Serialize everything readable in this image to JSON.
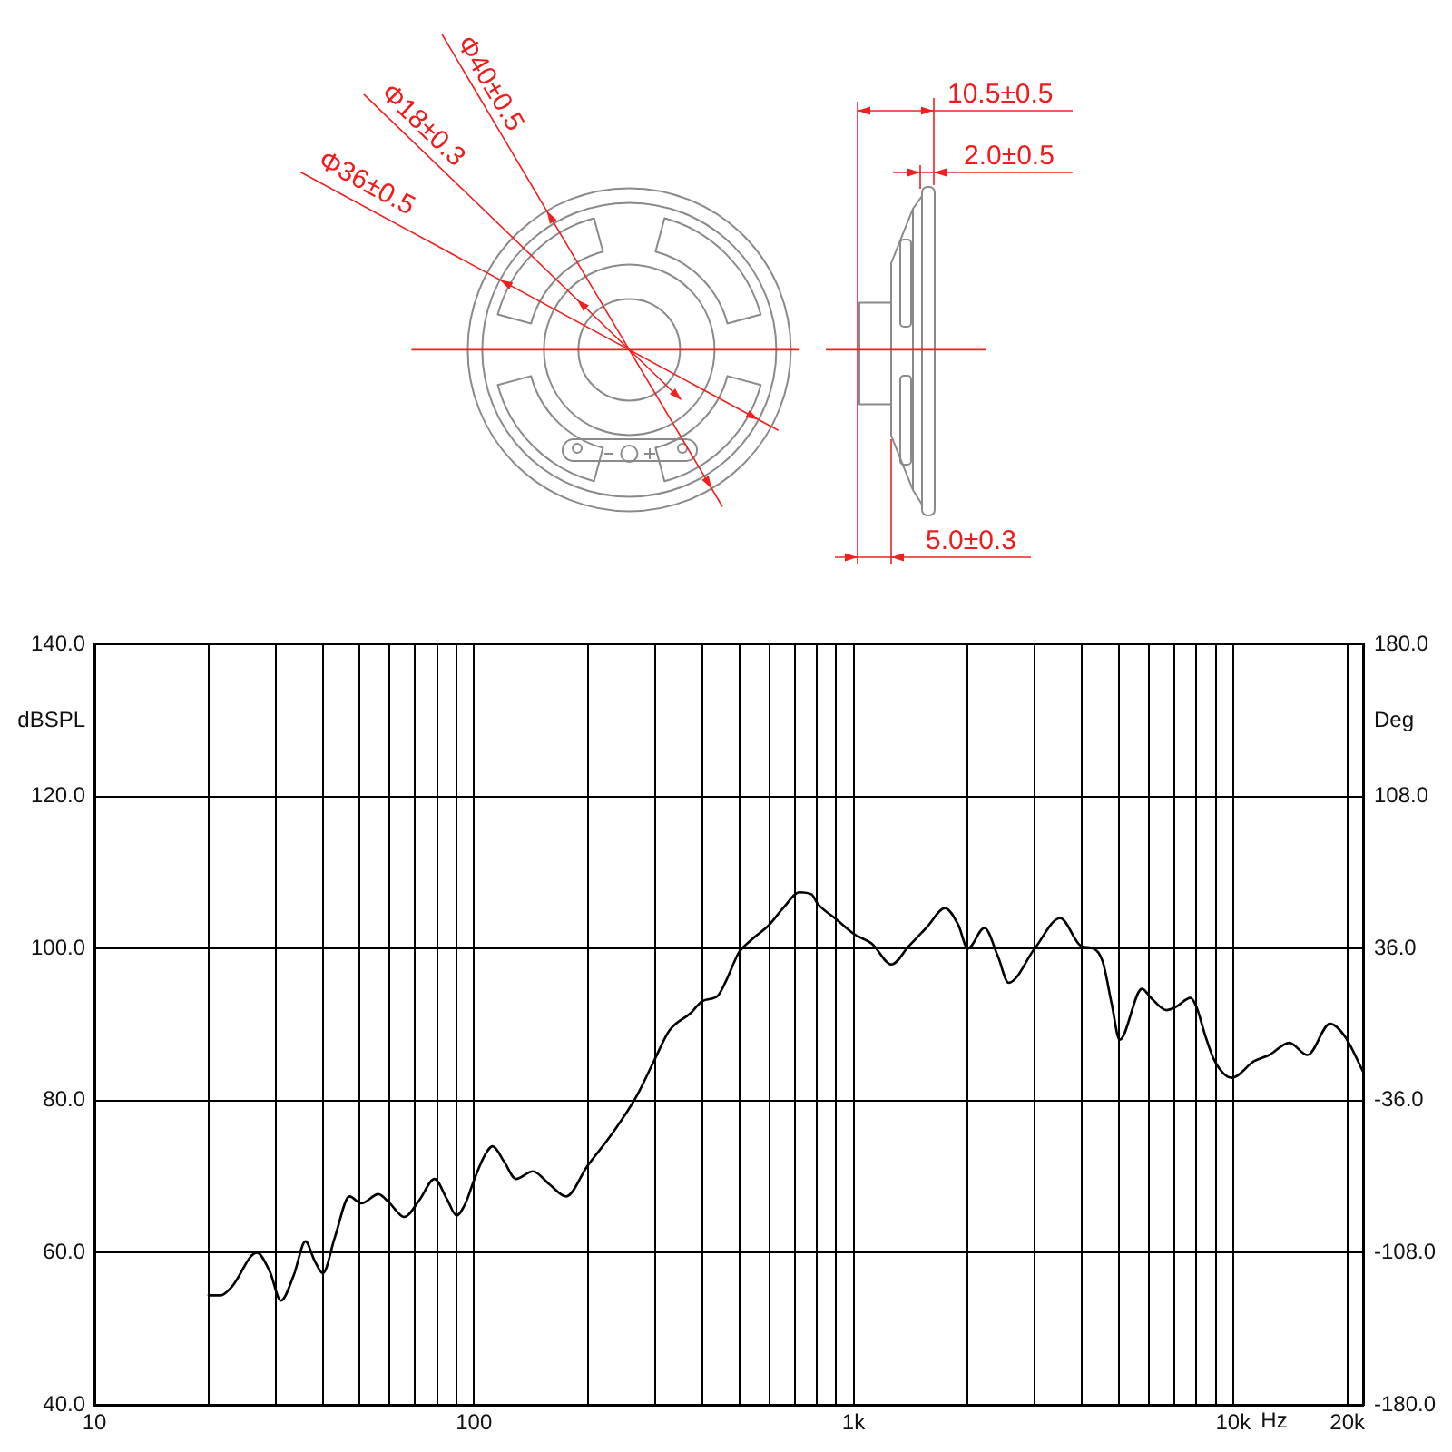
{
  "chart_data": {
    "type": "line",
    "annotations": [
      "Φ40±0.5",
      "Φ18±0.3",
      "Φ36±0.5",
      "10.5±0.5",
      "2.0±0.5",
      "5.0±0.3"
    ],
    "xlabel": "Hz",
    "ylabel": "dBSPL",
    "y2label": "Deg",
    "x": [
      20,
      21.5,
      23,
      26.8,
      29,
      31,
      33.5,
      36,
      38,
      40,
      43,
      47,
      50.5,
      56,
      60,
      65.5,
      72,
      78.7,
      85,
      90,
      95,
      100,
      106,
      112,
      120,
      129,
      143,
      158,
      175,
      199,
      230,
      267,
      298,
      327,
      372,
      400,
      439,
      463,
      499,
      537,
      599,
      657,
      720,
      776,
      804,
      898,
      1003,
      1120,
      1258,
      1398,
      1560,
      1742,
      1888,
      2000,
      2213,
      2400,
      2563,
      3001,
      3502,
      3986,
      4291,
      4533,
      4790,
      5024,
      5754,
      6080,
      6672,
      7050,
      7725,
      8011,
      8465,
      8945,
      9923,
      11370,
      12455,
      14061,
      15702,
      18003,
      19733,
      22000
    ],
    "series": [
      {
        "color": "#000000",
        "values": [
          54.4,
          54.4,
          55.5,
          60.0,
          57.5,
          53.7,
          57,
          61.5,
          59,
          57.3,
          62,
          67.4,
          66.5,
          67.7,
          66.5,
          64.7,
          67,
          69.7,
          67,
          64.9,
          66.5,
          69.5,
          72.5,
          74.0,
          72,
          69.7,
          70.7,
          69,
          67.4,
          71.4,
          75.5,
          80.4,
          85.2,
          89.2,
          91.5,
          93.1,
          93.8,
          95.9,
          99.5,
          101.1,
          103.1,
          105.5,
          107.4,
          107.1,
          105.9,
          103.9,
          101.9,
          100.6,
          97.9,
          100.3,
          102.8,
          105.3,
          103.1,
          100.0,
          102.7,
          99,
          95.5,
          100.0,
          104.0,
          100.3,
          100.0,
          98.3,
          92.7,
          88.0,
          94.7,
          93.5,
          91.9,
          92.3,
          93.5,
          92.3,
          88.4,
          85.2,
          83.0,
          85.2,
          86.0,
          87.6,
          86.0,
          90.1,
          88.4,
          83.8
        ]
      }
    ],
    "xlim": [
      10,
      22000
    ],
    "xticks": [
      10,
      {
        "value": 20,
        "label": null
      },
      {
        "value": 30,
        "label": null
      },
      {
        "value": 40,
        "label": null
      },
      {
        "value": 50,
        "label": null
      },
      {
        "value": 60,
        "label": null
      },
      {
        "value": 70,
        "label": null
      },
      {
        "value": 80,
        "label": null
      },
      {
        "value": 90,
        "label": null
      },
      100,
      {
        "value": 200,
        "label": null
      },
      {
        "value": 300,
        "label": null
      },
      {
        "value": 400,
        "label": null
      },
      {
        "value": 500,
        "label": null
      },
      {
        "value": 600,
        "label": null
      },
      {
        "value": 700,
        "label": null
      },
      {
        "value": 800,
        "label": null
      },
      {
        "value": 900,
        "label": null
      },
      {
        "value": 1000,
        "label": "1k"
      },
      {
        "value": 2000,
        "label": null
      },
      {
        "value": 3000,
        "label": null
      },
      {
        "value": 4000,
        "label": null
      },
      {
        "value": 5000,
        "label": null
      },
      {
        "value": 6000,
        "label": null
      },
      {
        "value": 7000,
        "label": null
      },
      {
        "value": 8000,
        "label": null
      },
      {
        "value": 9000,
        "label": null
      },
      {
        "value": 10000,
        "label": "10k"
      },
      {
        "value": 20000,
        "label": "20k"
      }
    ],
    "ylim": [
      40,
      140
    ],
    "yticks": [
      {
        "value": 40,
        "label": "40.0"
      },
      {
        "value": 60,
        "label": "60.0"
      },
      {
        "value": 80,
        "label": "80.0"
      },
      {
        "value": 100,
        "label": "100.0"
      },
      {
        "value": 120,
        "label": "120.0"
      },
      {
        "value": 140,
        "label": "140.0"
      }
    ],
    "y2lim": [
      -180,
      180
    ],
    "y2ticks": [
      {
        "value": -180,
        "label": "-180.0"
      },
      {
        "value": -108,
        "label": "-108.0"
      },
      {
        "value": -36,
        "label": "-36.0"
      },
      {
        "value": 36,
        "label": "36.0"
      },
      {
        "value": 108,
        "label": "108.0"
      },
      {
        "value": 180,
        "label": "180.0"
      }
    ],
    "log": "x",
    "grid": true,
    "marker": "none",
    "line_style": "solid"
  }
}
